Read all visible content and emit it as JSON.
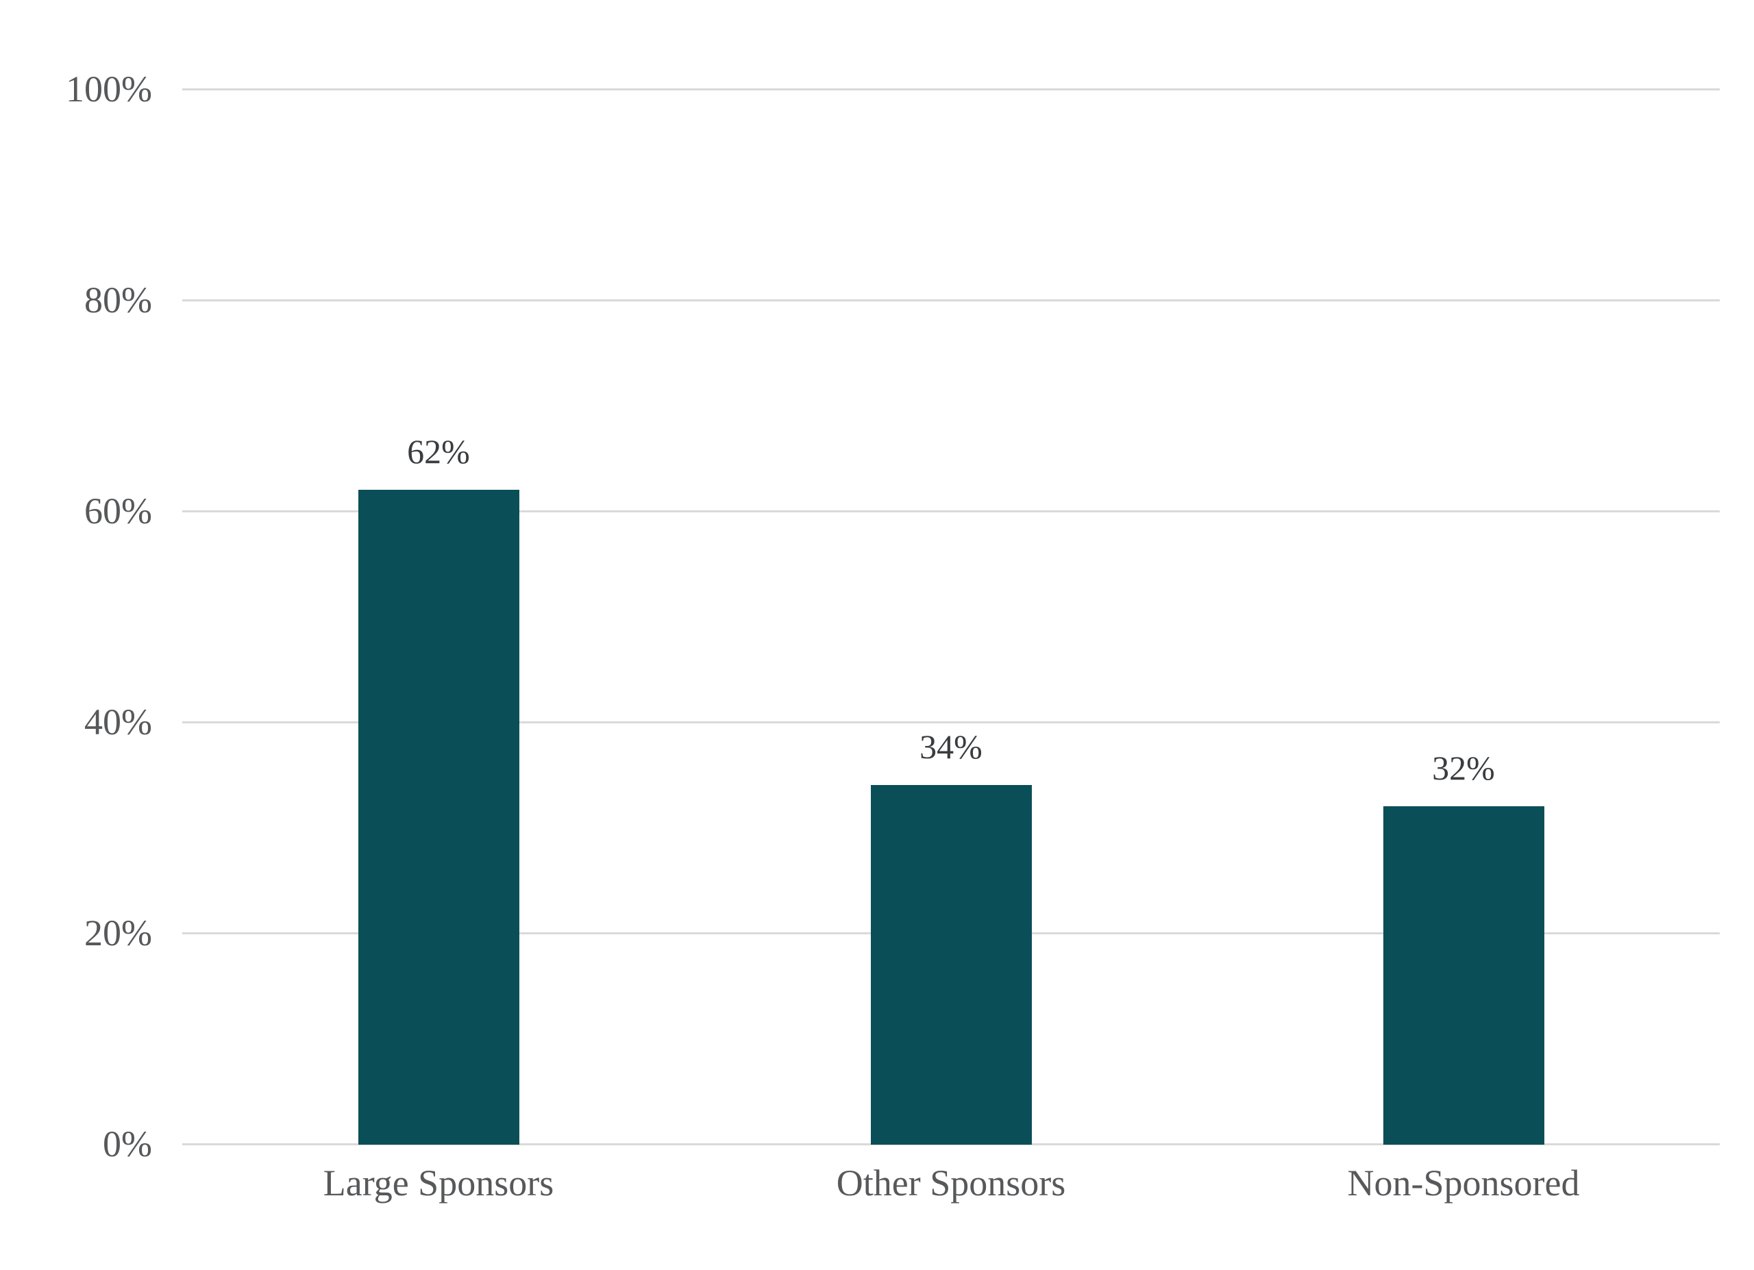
{
  "chart_data": {
    "type": "bar",
    "title": "",
    "xlabel": "",
    "ylabel": "",
    "categories": [
      "Large Sponsors",
      "Other Sponsors",
      "Non-Sponsored"
    ],
    "values": [
      62,
      34,
      32
    ],
    "value_labels": [
      "62%",
      "34%",
      "32%"
    ],
    "ylim": [
      0,
      100
    ],
    "yticks": [
      0,
      20,
      40,
      60,
      80,
      100
    ],
    "ytick_labels": [
      "0%",
      "20%",
      "40%",
      "60%",
      "80%",
      "100%"
    ],
    "grid": true,
    "legend_position": "none",
    "colors": {
      "bar": "#0a4f57",
      "gridline": "#d9d9d9",
      "tick_label": "#57585a",
      "category_label": "#57585a",
      "value_label": "#3a3d40",
      "background": "#ffffff"
    }
  }
}
